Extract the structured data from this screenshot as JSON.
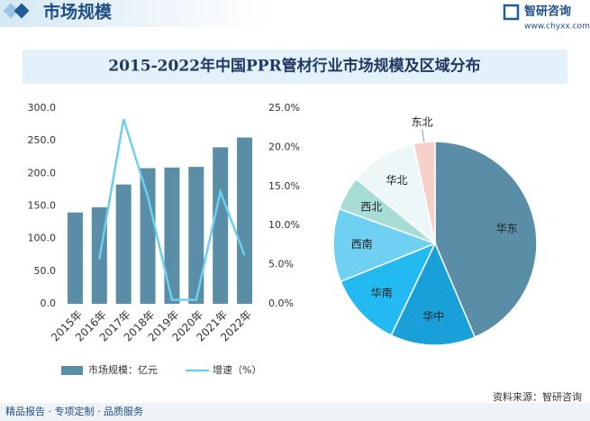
{
  "header": {
    "title": "市场规模",
    "brand": "智研咨询",
    "url": "www.chyxx.com"
  },
  "title": "2015-2022年中国PPR管材行业市场规模及区域分布",
  "chart_data": [
    {
      "type": "bar",
      "categories": [
        "2015年",
        "2016年",
        "2017年",
        "2018年",
        "2019年",
        "2020年",
        "2021年",
        "2022年"
      ],
      "series": [
        {
          "name": "市场规模：亿元",
          "color": "#5a8ea6",
          "values": [
            140,
            148,
            183,
            208,
            209,
            210,
            240,
            255
          ]
        },
        {
          "name": "增速（%）",
          "color": "#6dcff0",
          "type": "line",
          "axis": "y2",
          "values": [
            null,
            5.7,
            23.6,
            13.7,
            0.5,
            0.5,
            14.3,
            6.2
          ]
        }
      ],
      "ylim": [
        0,
        300
      ],
      "yticks": [
        {
          "value": 0,
          "label": "0.0"
        },
        {
          "value": 50,
          "label": "50.0"
        },
        {
          "value": 100,
          "label": "100.0"
        },
        {
          "value": 150,
          "label": "150.0"
        },
        {
          "value": 200,
          "label": "200.0"
        },
        {
          "value": 250,
          "label": "250.0"
        },
        {
          "value": 300,
          "label": "300.0"
        }
      ],
      "y2lim": [
        0,
        25
      ],
      "y2ticks": [
        {
          "value": 0,
          "label": "0.0%"
        },
        {
          "value": 5,
          "label": "5.0%"
        },
        {
          "value": 10,
          "label": "10.0%"
        },
        {
          "value": 15,
          "label": "15.0%"
        },
        {
          "value": 20,
          "label": "20.0%"
        },
        {
          "value": 25,
          "label": "25.0%"
        }
      ],
      "legend": "bottom"
    },
    {
      "type": "pie",
      "categories": [
        "华东",
        "华中",
        "华南",
        "西南",
        "西北",
        "华北",
        "东北"
      ],
      "values": [
        43.6,
        13.5,
        11.8,
        11.6,
        5.4,
        10.7,
        3.4
      ],
      "colors": [
        "#5a8ea6",
        "#1aa0d8",
        "#22baf0",
        "#6fd0f2",
        "#a8dcd7",
        "#eef7f8",
        "#f7d0c9"
      ]
    }
  ],
  "footer": {
    "left": "精品报告 · 专项定制 · 品质服务",
    "right": "资料来源：智研咨询"
  }
}
